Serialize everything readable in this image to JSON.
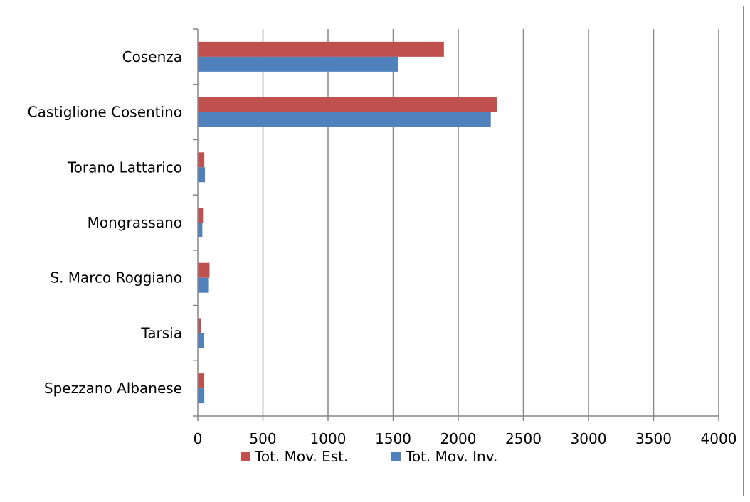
{
  "chart_data": {
    "type": "bar",
    "orientation": "horizontal",
    "categories": [
      "Cosenza",
      "Castiglione Cosentino",
      "Torano Lattarico",
      "Mongrassano",
      "S. Marco Roggiano",
      "Tarsia",
      "Spezzano Albanese"
    ],
    "series": [
      {
        "name": "Tot. Mov. Est.",
        "color": "#c0504d",
        "values": [
          1890,
          2300,
          50,
          40,
          90,
          25,
          45
        ]
      },
      {
        "name": "Tot. Mov. Inv.",
        "color": "#4f81bd",
        "values": [
          1540,
          2250,
          55,
          35,
          85,
          45,
          50
        ]
      }
    ],
    "xlim": [
      0,
      4000
    ],
    "xticks": [
      "0",
      "500",
      "1000",
      "1500",
      "2000",
      "2500",
      "3000",
      "3500",
      "4000"
    ],
    "grid": true,
    "legend_position": "bottom"
  }
}
